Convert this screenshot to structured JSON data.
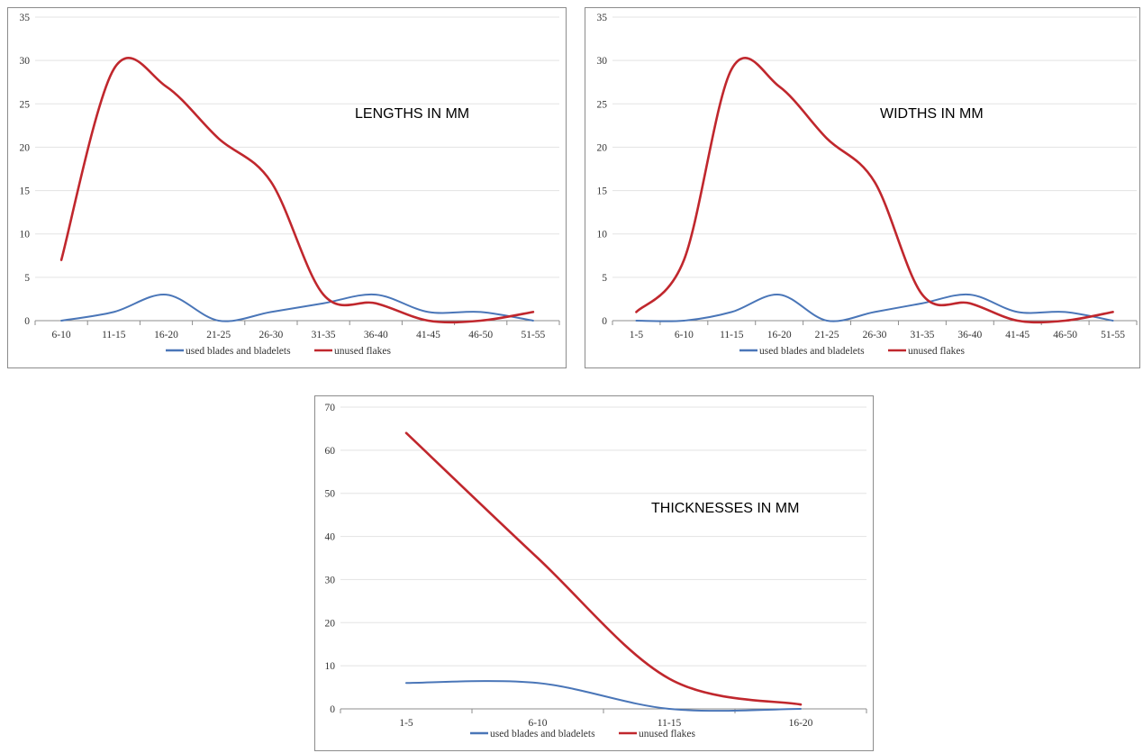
{
  "chart_data": [
    {
      "type": "line",
      "annotation": "LENGTHS IN MM",
      "categories": [
        "6-10",
        "11-15",
        "16-20",
        "21-25",
        "26-30",
        "31-35",
        "36-40",
        "41-45",
        "46-50",
        "51-55"
      ],
      "series": [
        {
          "name": "used blades and bladelets",
          "color": "#4a76b8",
          "values": [
            0,
            1,
            3,
            0,
            1,
            2,
            3,
            1,
            1,
            0
          ]
        },
        {
          "name": "unused flakes",
          "color": "#c0272d",
          "values": [
            7,
            29,
            27,
            21,
            16,
            3,
            2,
            0,
            0,
            1
          ]
        }
      ],
      "ylim": [
        0,
        35
      ],
      "yticks": [
        0,
        5,
        10,
        15,
        20,
        25,
        30,
        35
      ],
      "grid": true,
      "legend": "bottom"
    },
    {
      "type": "line",
      "annotation": "WIDTHS IN MM",
      "categories": [
        "1-5",
        "6-10",
        "11-15",
        "16-20",
        "21-25",
        "26-30",
        "31-35",
        "36-40",
        "41-45",
        "46-50",
        "51-55"
      ],
      "series": [
        {
          "name": "used blades and bladelets",
          "color": "#4a76b8",
          "values": [
            0,
            0,
            1,
            3,
            0,
            1,
            2,
            3,
            1,
            1,
            0
          ]
        },
        {
          "name": "unused flakes",
          "color": "#c0272d",
          "values": [
            1,
            7,
            29,
            27,
            21,
            16,
            3,
            2,
            0,
            0,
            1
          ]
        }
      ],
      "ylim": [
        0,
        35
      ],
      "yticks": [
        0,
        5,
        10,
        15,
        20,
        25,
        30,
        35
      ],
      "grid": true,
      "legend": "bottom"
    },
    {
      "type": "line",
      "annotation": "THICKNESSES IN MM",
      "categories": [
        "1-5",
        "6-10",
        "11-15",
        "16-20"
      ],
      "series": [
        {
          "name": "used blades and bladelets",
          "color": "#4a76b8",
          "values": [
            6,
            6,
            0,
            0
          ]
        },
        {
          "name": "unused flakes",
          "color": "#c0272d",
          "values": [
            64,
            35,
            7,
            1
          ]
        }
      ],
      "ylim": [
        0,
        70
      ],
      "yticks": [
        0,
        10,
        20,
        30,
        40,
        50,
        60,
        70
      ],
      "grid": true,
      "legend": "bottom"
    }
  ]
}
